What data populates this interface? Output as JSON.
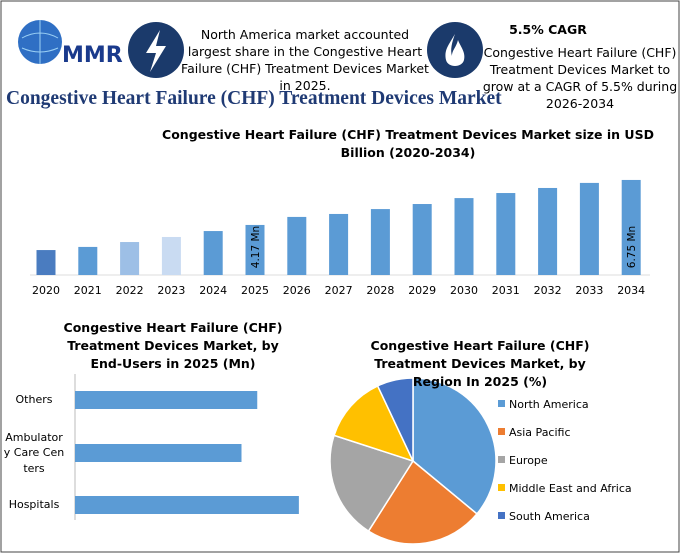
{
  "header": {
    "logo": "MMR",
    "fact_1": "North America market accounted largest share in the Congestive Heart Failure (CHF) Treatment Devices Market in 2025.",
    "fact_2_title": "5.5% CAGR",
    "fact_2": "Congestive Heart Failure (CHF) Treatment Devices Market to grow at a CAGR of 5.5% during 2026-2034",
    "title": "Congestive Heart Failure (CHF) Treatment Devices Market"
  },
  "chart_data": [
    {
      "type": "bar",
      "title": "Congestive Heart Failure (CHF) Treatment Devices Market size in USD Billion (2020-2034)",
      "categories": [
        "2020",
        "2021",
        "2022",
        "2023",
        "2024",
        "2025",
        "2026",
        "2027",
        "2028",
        "2029",
        "2030",
        "2031",
        "2032",
        "2033",
        "2034"
      ],
      "values": [
        2.73,
        2.91,
        3.19,
        3.48,
        3.82,
        4.17,
        4.63,
        4.8,
        5.08,
        5.37,
        5.71,
        6.0,
        6.29,
        6.58,
        6.75
      ],
      "value_labels": [
        null,
        null,
        null,
        null,
        null,
        "4.17 Mn",
        null,
        null,
        null,
        null,
        null,
        null,
        null,
        null,
        "6.75 Mn"
      ],
      "colors": [
        "#4a7cc0",
        "#5b9bd5",
        "#9dbfe6",
        "#c9dbf2",
        "#5b9bd5",
        "#5b9bd5",
        "#5b9bd5",
        "#5b9bd5",
        "#5b9bd5",
        "#5b9bd5",
        "#5b9bd5",
        "#5b9bd5",
        "#5b9bd5",
        "#5b9bd5",
        "#5b9bd5"
      ],
      "ylim": [
        1.3,
        7.2
      ]
    },
    {
      "type": "hbar",
      "title": "Congestive Heart Failure (CHF) Treatment Devices Market, by End-Users in 2025 (Mn)",
      "categories": [
        "Others",
        "Ambulatory Care Centers",
        "Hospitals"
      ],
      "values": [
        81,
        74,
        99.5
      ],
      "color": "#5b9bd5",
      "xlim": [
        0,
        100
      ]
    },
    {
      "type": "pie",
      "title": "Congestive Heart Failure (CHF) Treatment Devices Market, by Region In 2025 (%)",
      "categories": [
        "North America",
        "Asia Pacific",
        "Europe",
        "Middle East and Africa",
        "South America"
      ],
      "values": [
        36,
        23,
        21,
        13,
        7
      ],
      "colors": [
        "#5b9bd5",
        "#ed7d31",
        "#a5a5a5",
        "#ffc000",
        "#4472c4"
      ],
      "legend": "right"
    }
  ]
}
